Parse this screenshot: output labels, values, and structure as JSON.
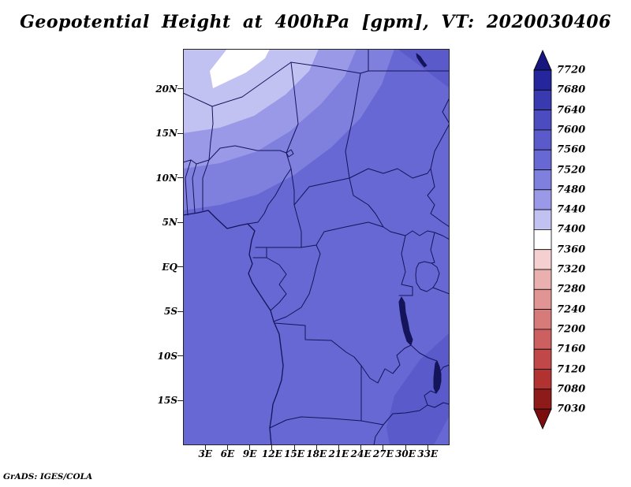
{
  "title": "Geopotential Height at 400hPa [gpm], VT: 2020030406",
  "footer": "GrADS: IGES/COLA",
  "axes": {
    "x_labels": [
      "3E",
      "6E",
      "9E",
      "12E",
      "15E",
      "18E",
      "21E",
      "24E",
      "27E",
      "30E",
      "33E"
    ],
    "y_labels": [
      "20N",
      "15N",
      "10N",
      "5N",
      "EQ",
      "5S",
      "10S",
      "15S"
    ]
  },
  "colorbar": {
    "labels": [
      "7720",
      "7680",
      "7640",
      "7600",
      "7560",
      "7520",
      "7480",
      "7440",
      "7400",
      "7360",
      "7320",
      "7280",
      "7240",
      "7200",
      "7160",
      "7120",
      "7080",
      "7030"
    ],
    "colors": [
      "#16167e",
      "#26269c",
      "#3a3ab0",
      "#4c4cc0",
      "#5a5acb",
      "#6868d4",
      "#7f7fdd",
      "#9999e8",
      "#c2c2f2",
      "#ffffff",
      "#f6d0d0",
      "#eab0b0",
      "#e09494",
      "#d67a7a",
      "#cc6060",
      "#c04848",
      "#b23232",
      "#8e1a1a",
      "#7a0e0e"
    ]
  },
  "map": {
    "border_color": "#14145a",
    "frame_color": "#222222"
  },
  "chart_data": {
    "type": "heatmap",
    "subtype": "filled_contour_geographic_map",
    "title": "Geopotential Height at 400hPa [gpm], VT: 2020030406",
    "variable": "Geopotential Height",
    "level": "400hPa",
    "units": "gpm",
    "valid_time": "2020030406",
    "x_tick_labels": [
      "3E",
      "6E",
      "9E",
      "12E",
      "15E",
      "18E",
      "21E",
      "24E",
      "27E",
      "30E",
      "33E"
    ],
    "y_tick_labels": [
      "20N",
      "15N",
      "10N",
      "5N",
      "EQ",
      "5S",
      "10S",
      "15S"
    ],
    "lon_range_deg_east": [
      0,
      36
    ],
    "lat_range_deg": [
      -20,
      24.5
    ],
    "contour_levels_gpm": [
      7030,
      7080,
      7120,
      7160,
      7200,
      7240,
      7280,
      7320,
      7360,
      7400,
      7440,
      7480,
      7520,
      7560,
      7600,
      7640,
      7680,
      7720
    ],
    "legend_position": "right",
    "grid": false,
    "region": "Central Africa (Gulf of Guinea to East Africa) with national borders and lakes drawn",
    "value_field_approx_bands": [
      {
        "value_range_gpm": [
          7520,
          7560
        ],
        "region": "dominant shade over most of the domain south of about 10N"
      },
      {
        "value_range_gpm": [
          7560,
          7600
        ],
        "region": "slightly darker pockets in the northeast corner (north of ~20N east of ~27E) and southeast (~27-36E, 12-18S)"
      },
      {
        "value_range_gpm": [
          7480,
          7520
        ],
        "region": "band from ~7N at 0E sloping northeast toward ~23N at 27E"
      },
      {
        "value_range_gpm": [
          7440,
          7480
        ],
        "region": "band from ~11N at 0E sloping northeast"
      },
      {
        "value_range_gpm": [
          7400,
          7440
        ],
        "region": "pale band from ~15N at 0E sloping northeast; fills northwest corner"
      },
      {
        "value_range_gpm": [
          7360,
          7400
        ],
        "region": "small near-white sliver along the top edge around 4-12E, 22-24N"
      }
    ]
  }
}
